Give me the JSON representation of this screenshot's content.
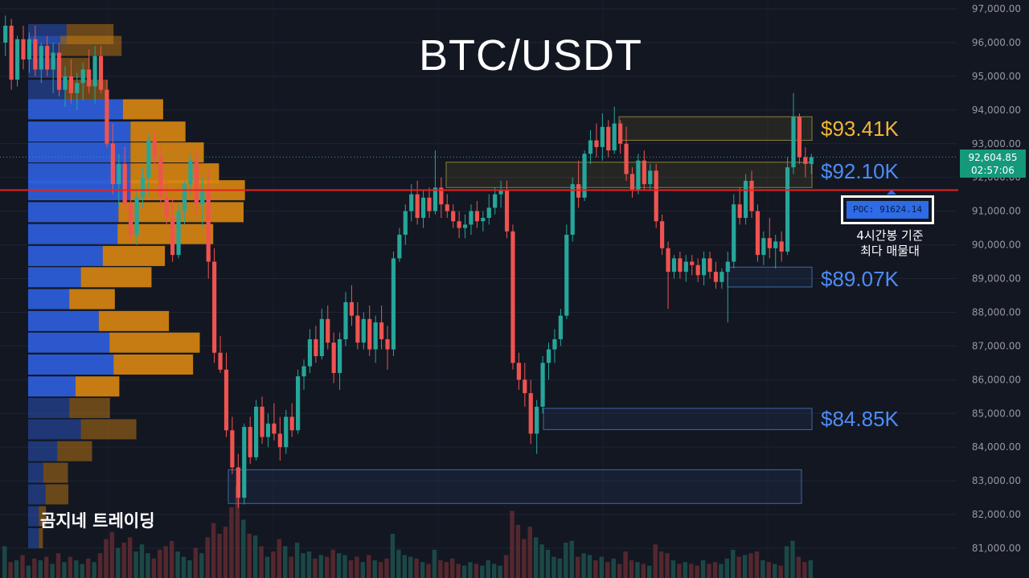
{
  "title": "BTC/USDT",
  "brand": "곰지네 트레이딩",
  "levels": [
    {
      "label": "$93.41K",
      "color": "#f2b632"
    },
    {
      "label": "$92.10K",
      "color": "#4d8cf5"
    },
    {
      "label": "$89.07K",
      "color": "#4d8cf5"
    },
    {
      "label": "$84.85K",
      "color": "#4d8cf5"
    }
  ],
  "poc": {
    "label": "POC: 91624.14",
    "note_line1": "4시간봉 기준",
    "note_line2": "최다 매물대"
  },
  "current_price": {
    "price": "92,604.85",
    "countdown": "02:57:06"
  },
  "colors": {
    "background": "#131722",
    "up": "#26a69a",
    "down": "#ef5350",
    "poc_line": "#e8201e",
    "vp_buy": "#2e5fdc",
    "vp_sell": "#d68512"
  },
  "chart_data": {
    "type": "candlestick",
    "title": "BTC/USDT",
    "y_axis_labels": [
      "97,000.00",
      "96,000.00",
      "95,000.00",
      "94,000.00",
      "93,000.00",
      "92,000.00",
      "91,000.00",
      "90,000.00",
      "89,000.00",
      "88,000.00",
      "87,000.00",
      "86,000.00",
      "85,000.00",
      "84,000.00",
      "83,000.00",
      "82,000.00",
      "81,000.00"
    ],
    "ylim": [
      80200,
      97300
    ],
    "grid": true,
    "poc_price": 91624.14,
    "current_price": 92604.85,
    "zones": [
      {
        "from": 93100,
        "to": 93800,
        "color": "yellow"
      },
      {
        "from": 91700,
        "to": 92450,
        "color": "yellow"
      },
      {
        "from": 88750,
        "to": 89340,
        "color": "blue"
      },
      {
        "from": 84520,
        "to": 85150,
        "color": "blue"
      },
      {
        "from": 82330,
        "to": 83330,
        "color": "blue"
      }
    ],
    "volume_profile": {
      "price_levels": [
        96250,
        95900,
        95250,
        94600,
        94020,
        93360,
        92740,
        92120,
        91620,
        90970,
        90320,
        89670,
        89040,
        88390,
        87740,
        87100,
        86450,
        85800,
        85160,
        84530,
        83880,
        83240,
        82600,
        81950,
        81300
      ],
      "buy": [
        860,
        720,
        640,
        830,
        2120,
        2290,
        2290,
        2290,
        2290,
        2020,
        2000,
        1670,
        1180,
        920,
        1580,
        1820,
        1910,
        1060,
        920,
        1180,
        650,
        340,
        390,
        240,
        240
      ],
      "sell": [
        1050,
        1370,
        740,
        950,
        900,
        1230,
        1640,
        1980,
        2560,
        2800,
        2140,
        1390,
        1580,
        1020,
        1570,
        2020,
        1780,
        980,
        910,
        1240,
        780,
        550,
        510,
        160,
        90
      ]
    },
    "candles": [
      [
        96000,
        96800,
        95600,
        96500
      ],
      [
        96500,
        96700,
        94600,
        94900
      ],
      [
        94900,
        96200,
        94700,
        96100
      ],
      [
        96100,
        96500,
        95200,
        95500
      ],
      [
        95500,
        96300,
        95100,
        96100
      ],
      [
        96100,
        96500,
        95000,
        95200
      ],
      [
        95200,
        96000,
        94800,
        95900
      ],
      [
        95900,
        96200,
        95000,
        95200
      ],
      [
        95200,
        96000,
        94500,
        95700
      ],
      [
        95700,
        96000,
        94400,
        94600
      ],
      [
        94600,
        95300,
        94100,
        95000
      ],
      [
        95000,
        95500,
        94200,
        94500
      ],
      [
        94500,
        95100,
        94000,
        94800
      ],
      [
        94800,
        95400,
        94300,
        95200
      ],
      [
        95200,
        95800,
        94500,
        94700
      ],
      [
        94700,
        95900,
        94200,
        95600
      ],
      [
        95600,
        95900,
        94500,
        94600
      ],
      [
        94600,
        94900,
        92900,
        93000
      ],
      [
        93000,
        93600,
        91500,
        91800
      ],
      [
        91800,
        92700,
        91100,
        92400
      ],
      [
        92400,
        92900,
        91000,
        91200
      ],
      [
        91200,
        91900,
        90100,
        90300
      ],
      [
        90300,
        91700,
        90000,
        91400
      ],
      [
        91400,
        92300,
        91100,
        92000
      ],
      [
        92000,
        93300,
        91500,
        93100
      ],
      [
        93100,
        93400,
        92300,
        92600
      ],
      [
        92600,
        92900,
        91100,
        91400
      ],
      [
        91400,
        91900,
        90600,
        90800
      ],
      [
        90800,
        91400,
        89500,
        89700
      ],
      [
        89700,
        91200,
        89600,
        91000
      ],
      [
        91000,
        91900,
        90600,
        91800
      ],
      [
        91800,
        92700,
        91500,
        92500
      ],
      [
        92500,
        92800,
        90900,
        91200
      ],
      [
        91200,
        92000,
        90500,
        91600
      ],
      [
        91600,
        92200,
        89000,
        89500
      ],
      [
        89500,
        89900,
        86500,
        86800
      ],
      [
        86800,
        87300,
        86200,
        86300
      ],
      [
        86300,
        86800,
        84300,
        84500
      ],
      [
        84500,
        84900,
        83200,
        83400
      ],
      [
        83400,
        83800,
        82200,
        82500
      ],
      [
        82500,
        84700,
        82300,
        84600
      ],
      [
        84600,
        84900,
        83500,
        83700
      ],
      [
        83700,
        85400,
        83600,
        85200
      ],
      [
        85200,
        85500,
        84100,
        84300
      ],
      [
        84300,
        85000,
        84000,
        84700
      ],
      [
        84700,
        85300,
        84200,
        84400
      ],
      [
        84400,
        84900,
        83600,
        84000
      ],
      [
        84000,
        85100,
        83800,
        84900
      ],
      [
        84900,
        85300,
        84300,
        84500
      ],
      [
        84500,
        86300,
        84400,
        86100
      ],
      [
        86100,
        86600,
        85700,
        86400
      ],
      [
        86400,
        87500,
        86200,
        87200
      ],
      [
        87200,
        87600,
        86500,
        86700
      ],
      [
        86700,
        88100,
        86600,
        87800
      ],
      [
        87800,
        88200,
        86900,
        87100
      ],
      [
        87100,
        87400,
        85900,
        86200
      ],
      [
        86200,
        87400,
        85700,
        87200
      ],
      [
        87200,
        88600,
        87000,
        88300
      ],
      [
        88300,
        88800,
        87600,
        87900
      ],
      [
        87900,
        88300,
        86900,
        87100
      ],
      [
        87100,
        88000,
        86900,
        87800
      ],
      [
        87800,
        88200,
        86700,
        86900
      ],
      [
        86900,
        87900,
        86500,
        87700
      ],
      [
        87700,
        88200,
        86900,
        87200
      ],
      [
        87200,
        87600,
        86300,
        86900
      ],
      [
        86900,
        89800,
        86700,
        89600
      ],
      [
        89600,
        90500,
        89500,
        90300
      ],
      [
        90300,
        91200,
        90000,
        91000
      ],
      [
        91000,
        91800,
        90700,
        91500
      ],
      [
        91500,
        91900,
        90600,
        90800
      ],
      [
        90800,
        91600,
        90500,
        91400
      ],
      [
        91400,
        91700,
        90800,
        91000
      ],
      [
        91000,
        92800,
        90900,
        91700
      ],
      [
        91700,
        92000,
        90800,
        91200
      ],
      [
        91200,
        91500,
        90800,
        91000
      ],
      [
        91000,
        91200,
        90500,
        90700
      ],
      [
        90700,
        91000,
        90200,
        90500
      ],
      [
        90500,
        90900,
        90200,
        90600
      ],
      [
        90600,
        91200,
        90300,
        91000
      ],
      [
        91000,
        91300,
        90500,
        90700
      ],
      [
        90700,
        91000,
        90400,
        90800
      ],
      [
        90800,
        91500,
        90600,
        91100
      ],
      [
        91100,
        91700,
        90900,
        91500
      ],
      [
        91500,
        91900,
        91100,
        91600
      ],
      [
        91600,
        91900,
        90200,
        90400
      ],
      [
        90400,
        90600,
        86300,
        86500
      ],
      [
        86500,
        86800,
        85700,
        86000
      ],
      [
        86000,
        86500,
        85200,
        85600
      ],
      [
        85600,
        86000,
        84100,
        84400
      ],
      [
        84400,
        85400,
        83800,
        85200
      ],
      [
        85200,
        86700,
        85000,
        86500
      ],
      [
        86500,
        87100,
        86000,
        86900
      ],
      [
        86900,
        87500,
        86500,
        87200
      ],
      [
        87200,
        88100,
        87000,
        87900
      ],
      [
        87900,
        90600,
        87800,
        90300
      ],
      [
        90300,
        92000,
        90100,
        91800
      ],
      [
        91800,
        92500,
        91100,
        91400
      ],
      [
        91400,
        92800,
        91300,
        92700
      ],
      [
        92700,
        93400,
        92400,
        93100
      ],
      [
        93100,
        93600,
        92600,
        92900
      ],
      [
        92900,
        93900,
        92500,
        93500
      ],
      [
        93500,
        93700,
        92600,
        92800
      ],
      [
        92800,
        94100,
        92700,
        93600
      ],
      [
        93600,
        93700,
        92700,
        93000
      ],
      [
        93000,
        93500,
        91900,
        92100
      ],
      [
        92100,
        92300,
        91400,
        91600
      ],
      [
        91600,
        92700,
        91500,
        92500
      ],
      [
        92500,
        92800,
        91600,
        91800
      ],
      [
        91800,
        92400,
        91600,
        92200
      ],
      [
        92200,
        92400,
        90500,
        90700
      ],
      [
        90700,
        90900,
        89700,
        89900
      ],
      [
        89900,
        90100,
        88100,
        89200
      ],
      [
        89200,
        89700,
        89000,
        89600
      ],
      [
        89600,
        89800,
        89000,
        89200
      ],
      [
        89200,
        89700,
        88900,
        89500
      ],
      [
        89500,
        89700,
        89100,
        89400
      ],
      [
        89400,
        89600,
        88900,
        89100
      ],
      [
        89100,
        89800,
        88800,
        89600
      ],
      [
        89600,
        89800,
        89000,
        89200
      ],
      [
        89200,
        89500,
        88700,
        88900
      ],
      [
        88900,
        89300,
        88700,
        89200
      ],
      [
        89200,
        89800,
        87700,
        89500
      ],
      [
        89500,
        91500,
        89300,
        91200
      ],
      [
        91200,
        91700,
        90600,
        90800
      ],
      [
        90800,
        92100,
        90600,
        91900
      ],
      [
        91900,
        92200,
        90800,
        91000
      ],
      [
        91000,
        91200,
        89500,
        89700
      ],
      [
        89700,
        90400,
        89400,
        90200
      ],
      [
        90200,
        90800,
        89600,
        89900
      ],
      [
        89900,
        90300,
        89300,
        90100
      ],
      [
        90100,
        90400,
        89500,
        89800
      ],
      [
        89800,
        92600,
        89700,
        92300
      ],
      [
        92300,
        94500,
        92100,
        93800
      ],
      [
        93800,
        93900,
        92400,
        92600
      ],
      [
        92600,
        92900,
        92000,
        92400
      ],
      [
        92400,
        92700,
        92100,
        92600
      ]
    ],
    "volumes": [
      18,
      9,
      10,
      13,
      7,
      11,
      10,
      12,
      8,
      14,
      9,
      12,
      10,
      8,
      11,
      9,
      14,
      22,
      26,
      17,
      20,
      23,
      15,
      19,
      14,
      11,
      16,
      18,
      21,
      15,
      12,
      10,
      17,
      14,
      23,
      31,
      25,
      29,
      40,
      52,
      33,
      25,
      24,
      18,
      12,
      15,
      22,
      18,
      12,
      20,
      14,
      15,
      11,
      13,
      12,
      16,
      14,
      13,
      10,
      12,
      9,
      13,
      10,
      9,
      11,
      25,
      16,
      13,
      12,
      11,
      9,
      8,
      16,
      10,
      9,
      11,
      8,
      7,
      9,
      8,
      7,
      10,
      8,
      7,
      13,
      38,
      30,
      22,
      29,
      23,
      19,
      16,
      12,
      11,
      20,
      21,
      12,
      14,
      13,
      10,
      12,
      9,
      11,
      8,
      15,
      10,
      9,
      8,
      7,
      19,
      15,
      14,
      10,
      8,
      9,
      8,
      7,
      10,
      8,
      9,
      8,
      11,
      16,
      12,
      13,
      14,
      15,
      10,
      9,
      8,
      7,
      18,
      21,
      12,
      9,
      10
    ]
  }
}
